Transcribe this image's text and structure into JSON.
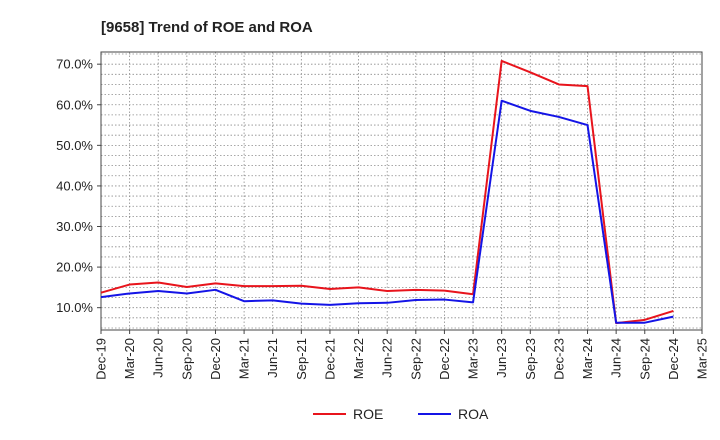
{
  "chart_data": {
    "type": "line",
    "title": "[9658]  Trend of ROE and ROA",
    "xlabel": "",
    "ylabel": "",
    "ylim": [
      4.5,
      73
    ],
    "y_ticks": [
      10,
      20,
      30,
      40,
      50,
      60,
      70
    ],
    "y_tick_labels": [
      "10.0%",
      "20.0%",
      "30.0%",
      "40.0%",
      "50.0%",
      "60.0%",
      "70.0%"
    ],
    "categories": [
      "Dec-19",
      "Mar-20",
      "Jun-20",
      "Sep-20",
      "Dec-20",
      "Mar-21",
      "Jun-21",
      "Sep-21",
      "Dec-21",
      "Mar-22",
      "Jun-22",
      "Sep-22",
      "Dec-22",
      "Mar-23",
      "Jun-23",
      "Sep-23",
      "Dec-23",
      "Mar-24",
      "Jun-24",
      "Sep-24",
      "Dec-24",
      "Mar-25"
    ],
    "grid": true,
    "legend_position": "bottom",
    "series": [
      {
        "name": "ROE",
        "color": "#e8141c",
        "values": [
          13.7,
          15.7,
          16.2,
          15.1,
          16.0,
          15.3,
          15.3,
          15.4,
          14.6,
          15.0,
          14.1,
          14.4,
          14.2,
          13.3,
          70.8,
          68.0,
          65.0,
          64.6,
          6.2,
          7.0,
          9.2,
          null
        ]
      },
      {
        "name": "ROA",
        "color": "#1414e6",
        "values": [
          12.6,
          13.5,
          14.1,
          13.5,
          14.4,
          11.6,
          11.8,
          11.0,
          10.7,
          11.1,
          11.2,
          11.9,
          12.0,
          11.3,
          61.0,
          58.5,
          57.0,
          55.0,
          6.3,
          6.3,
          7.8,
          null
        ]
      }
    ]
  }
}
